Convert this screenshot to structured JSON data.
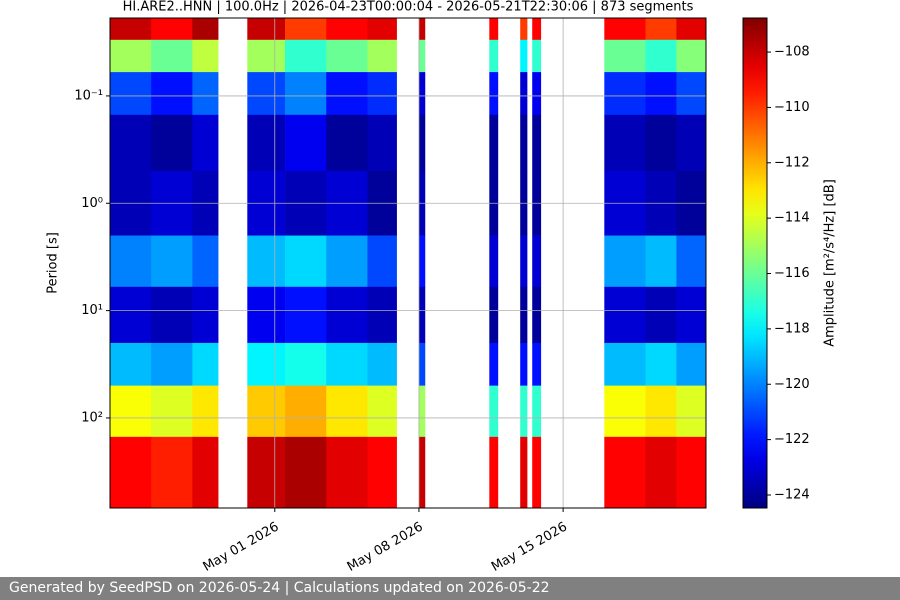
{
  "chart_data": {
    "type": "heatmap",
    "title": "HI.ARE2..HNN | 100.0Hz | 2026-04-23T00:00:04 - 2026-05-21T22:30:06 | 873 segments",
    "ylabel": "Period [s]",
    "colorbar_label": "Amplitude [m²/s⁴/Hz] [dB]",
    "colormap": "jet",
    "yscale": "log",
    "y_inverted": true,
    "grid": true,
    "xlim": [
      "2026-04-23T00:00:04",
      "2026-05-21T22:30:06"
    ],
    "xticks": [
      {
        "value": "2026-05-01",
        "label": "May 01 2026"
      },
      {
        "value": "2026-05-08",
        "label": "May 08 2026"
      },
      {
        "value": "2026-05-15",
        "label": "May 15 2026"
      }
    ],
    "ylim": [
      0.0188,
      690
    ],
    "yticks": [
      {
        "value": 0.1,
        "label": "10⁻¹"
      },
      {
        "value": 1,
        "label": "10⁰"
      },
      {
        "value": 10,
        "label": "10¹"
      },
      {
        "value": 100,
        "label": "10²"
      }
    ],
    "clim": [
      -124.47,
      -106.77
    ],
    "cticks": [
      {
        "value": -108,
        "label": "−108"
      },
      {
        "value": -110,
        "label": "−110"
      },
      {
        "value": -112,
        "label": "−112"
      },
      {
        "value": -114,
        "label": "−114"
      },
      {
        "value": -116,
        "label": "−116"
      },
      {
        "value": -118,
        "label": "−118"
      },
      {
        "value": -120,
        "label": "−120"
      },
      {
        "value": -122,
        "label": "−122"
      },
      {
        "value": -124,
        "label": "−124"
      }
    ],
    "x": [
      "2026-04-23T00:00",
      "2026-04-25T00:00",
      "2026-04-27T00:00",
      "2026-04-28T06:00",
      "2026-04-29T16:00",
      "2026-05-01T12:00",
      "2026-05-03T12:00",
      "2026-05-05T12:00",
      "2026-05-06T22:00",
      "2026-05-08T00:00",
      "2026-05-08T07:00",
      "2026-05-11T10:00",
      "2026-05-11T20:00",
      "2026-05-12T22:00",
      "2026-05-13T06:00",
      "2026-05-13T12:00",
      "2026-05-13T22:00",
      "2026-05-17T00:00",
      "2026-05-19T00:00",
      "2026-05-20T12:00"
    ],
    "y_edges": [
      0.0188,
      0.03,
      0.06,
      0.15,
      0.5,
      2,
      6,
      20,
      50,
      150,
      690
    ],
    "values": [
      [
        -108,
        -109,
        -107.5,
        null,
        -108,
        -110,
        -109,
        -108.5,
        null,
        -108,
        null,
        -109,
        null,
        -110,
        null,
        -109,
        null,
        -109,
        -110,
        -108.5
      ],
      [
        -115,
        -116,
        -114.5,
        null,
        -115,
        -117,
        -116,
        -115,
        null,
        -116,
        null,
        -117,
        null,
        -118,
        null,
        -117,
        null,
        -116,
        -117,
        -115.5
      ],
      [
        -121,
        -122,
        -120.5,
        null,
        -121,
        -120,
        -122,
        -121.5,
        null,
        -123,
        null,
        -122,
        null,
        -123,
        null,
        -122.5,
        null,
        -121.5,
        -122,
        -121
      ],
      [
        -123.5,
        -124,
        -123,
        null,
        -123.5,
        -122.5,
        -124,
        -123.5,
        null,
        -124,
        null,
        -124,
        null,
        -124,
        null,
        -124,
        null,
        -123.5,
        -124,
        -123.5
      ],
      [
        -123.5,
        -123,
        -123.5,
        null,
        -123,
        -123.5,
        -123,
        -124,
        null,
        -123.5,
        null,
        -124,
        null,
        -124,
        null,
        -124,
        null,
        -123,
        -123.5,
        -124
      ],
      [
        -120,
        -119.5,
        -120.5,
        null,
        -119,
        -118.5,
        -119.5,
        -121,
        null,
        -122,
        null,
        -123,
        null,
        -123,
        null,
        -123,
        null,
        -119.5,
        -119,
        -120.5
      ],
      [
        -123,
        -123.5,
        -123,
        null,
        -122.5,
        -122,
        -123,
        -123.5,
        null,
        -123.5,
        null,
        -124,
        null,
        -124,
        null,
        -124,
        null,
        -123,
        -123.5,
        -123
      ],
      [
        -119,
        -119.5,
        -118.5,
        null,
        -118,
        -117.5,
        -118.5,
        -119,
        null,
        -121,
        null,
        -122,
        null,
        -122,
        null,
        -122,
        null,
        -119,
        -118.5,
        -119.5
      ],
      [
        -113.5,
        -114,
        -113,
        null,
        -112.5,
        -112,
        -113,
        -114,
        null,
        -115,
        null,
        -117,
        null,
        -117,
        null,
        -117,
        null,
        -113.5,
        -113,
        -114
      ],
      [
        -109,
        -109.5,
        -108.5,
        null,
        -108,
        -107.5,
        -108.5,
        -109,
        null,
        -108,
        null,
        -109,
        null,
        -108.5,
        null,
        -109,
        null,
        -109,
        -108.5,
        -109
      ]
    ]
  },
  "footer": "Generated by SeedPSD on 2026-05-24 | Calculations updated on 2026-05-22"
}
